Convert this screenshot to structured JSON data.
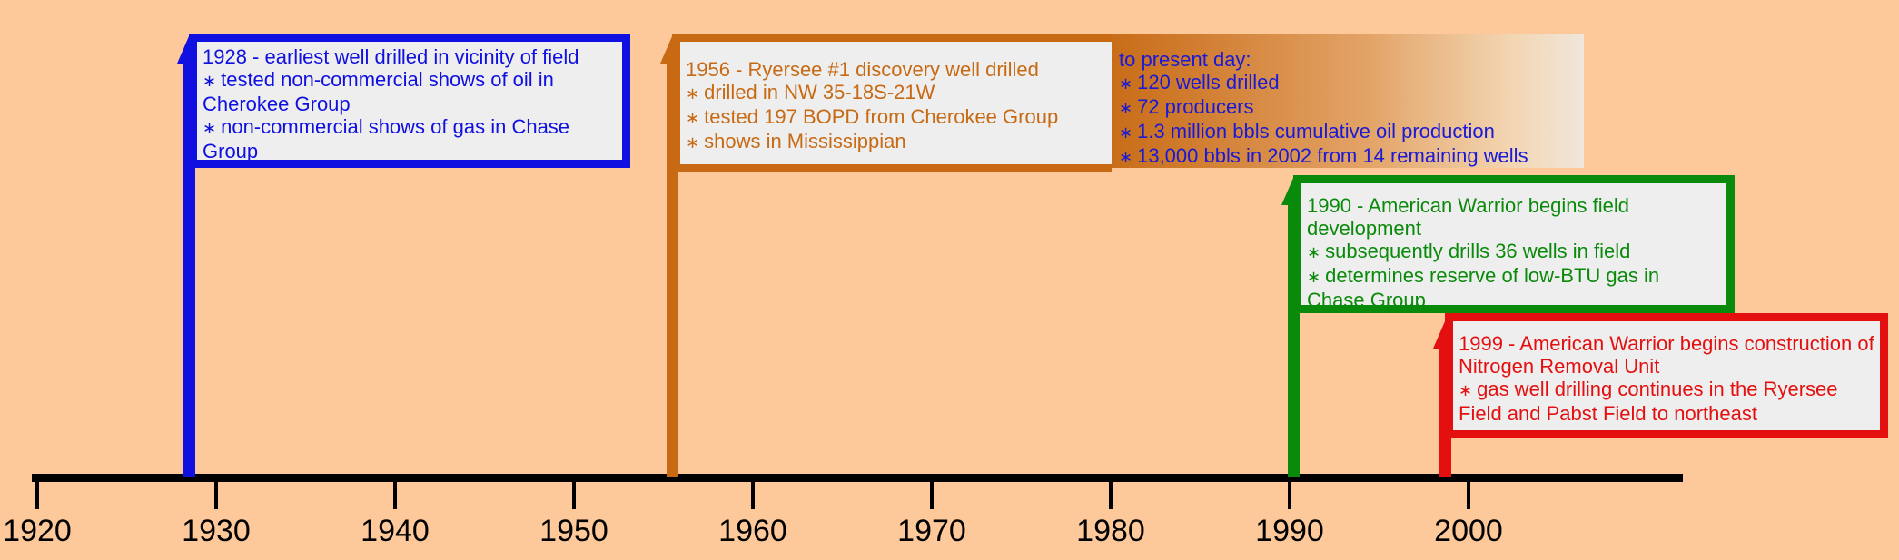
{
  "axis": {
    "ticks": [
      "1920",
      "1930",
      "1940",
      "1950",
      "1960",
      "1970",
      "1980",
      "1990",
      "2000"
    ]
  },
  "events": [
    {
      "id": "1928",
      "color": "#1010e0",
      "title": "1928 - earliest well drilled in vicinity of field",
      "bullets": [
        "tested non-commercial shows of oil in Cherokee Group",
        "non-commercial shows of gas in Chase Group"
      ]
    },
    {
      "id": "1956",
      "color": "#c86a14",
      "title": "1956 - Ryersee #1 discovery well drilled",
      "bullets": [
        "drilled in NW 35-18S-21W",
        "tested 197 BOPD from Cherokee Group",
        "shows in Mississippian"
      ]
    },
    {
      "id": "1990",
      "color": "#0a8a0a",
      "title": "1990 - American Warrior begins field development",
      "bullets": [
        "subsequently drills 36 wells in field",
        "determines reserve of low-BTU gas in Chase Group"
      ]
    },
    {
      "id": "1999",
      "color": "#e41010",
      "title": "1999 - American Warrior begins construction of Nitrogen Removal Unit",
      "bullets": [
        "gas well drilling continues in the Ryersee Field and Pabst Field to northeast"
      ]
    }
  ],
  "present_day": {
    "title": "to present day:",
    "bullets": [
      "120 wells drilled",
      "72 producers",
      "1.3 million bbls cumulative oil production",
      "13,000 bbls in 2002 from 14 remaining wells"
    ]
  }
}
